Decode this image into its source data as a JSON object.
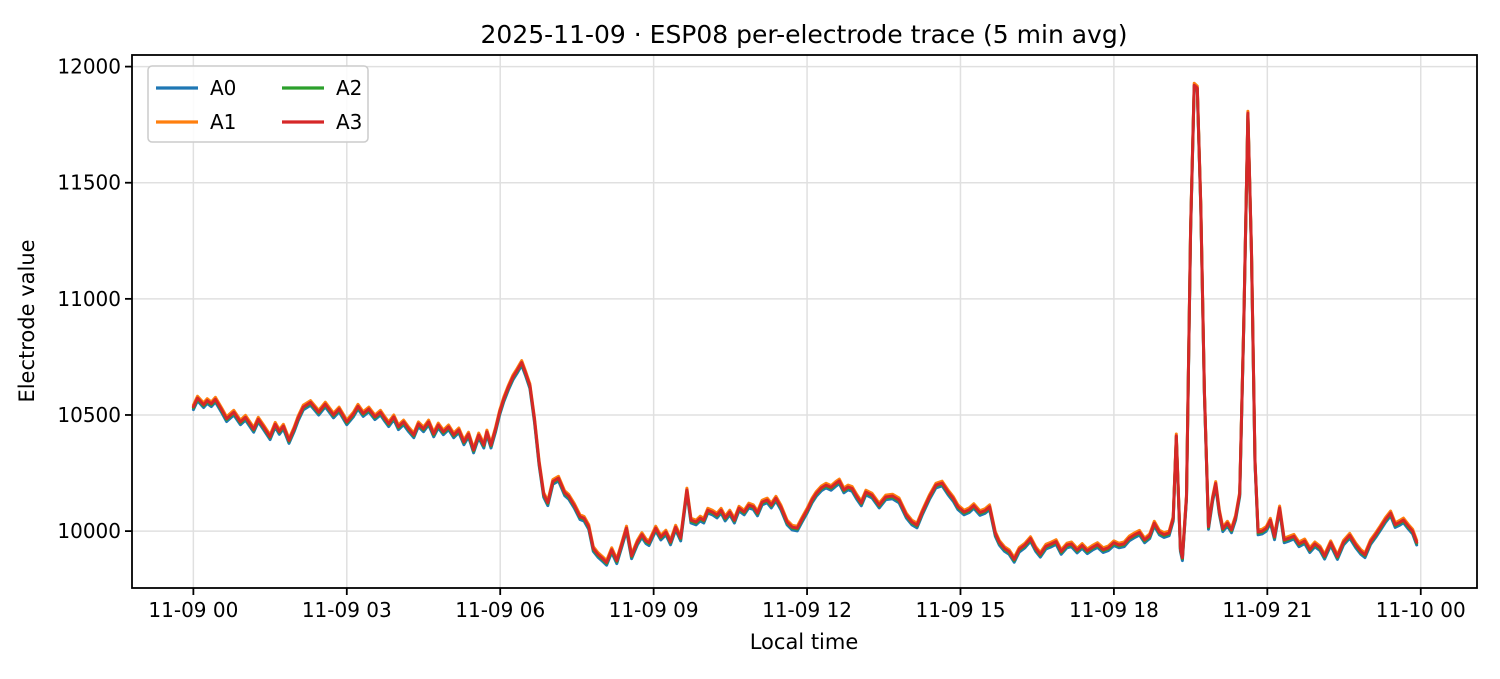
{
  "figure": {
    "title": "2025-11-09 · ESP08 per-electrode trace (5 min avg)",
    "xlabel": "Local time",
    "ylabel": "Electrode value"
  },
  "chart_data": {
    "type": "line",
    "title": "2025-11-09 · ESP08 per-electrode trace (5 min avg)",
    "xlabel": "Local time",
    "ylabel": "Electrode value",
    "x_unit": "hours since 2025-11-09 00:00 local",
    "sampling": "5 min avg",
    "grid": true,
    "legend_position": "upper left",
    "legend_columns": 2,
    "xlim": [
      -1.2,
      25.1
    ],
    "ylim": [
      9755,
      12050
    ],
    "x_ticks": {
      "hours": [
        0,
        3,
        6,
        9,
        12,
        15,
        18,
        21,
        24
      ],
      "labels": [
        "11-09 00",
        "11-09 03",
        "11-09 06",
        "11-09 09",
        "11-09 12",
        "11-09 15",
        "11-09 18",
        "11-09 21",
        "11-10 00"
      ]
    },
    "y_ticks": {
      "values": [
        10000,
        10500,
        11000,
        11500,
        12000
      ],
      "labels": [
        "10000",
        "10500",
        "11000",
        "11500",
        "12000"
      ]
    },
    "x_hours": [
      0.0,
      0.08,
      0.2,
      0.27,
      0.35,
      0.43,
      0.56,
      0.65,
      0.79,
      0.92,
      1.02,
      1.18,
      1.27,
      1.37,
      1.5,
      1.6,
      1.68,
      1.76,
      1.87,
      1.97,
      2.05,
      2.15,
      2.29,
      2.45,
      2.58,
      2.74,
      2.85,
      3.0,
      3.13,
      3.22,
      3.32,
      3.43,
      3.55,
      3.66,
      3.74,
      3.82,
      3.92,
      4.01,
      4.11,
      4.21,
      4.31,
      4.4,
      4.5,
      4.6,
      4.7,
      4.79,
      4.89,
      4.99,
      5.09,
      5.19,
      5.29,
      5.38,
      5.48,
      5.58,
      5.68,
      5.74,
      5.82,
      5.91,
      5.99,
      6.07,
      6.16,
      6.25,
      6.33,
      6.42,
      6.5,
      6.58,
      6.67,
      6.76,
      6.85,
      6.93,
      7.03,
      7.14,
      7.26,
      7.34,
      7.45,
      7.56,
      7.64,
      7.73,
      7.82,
      7.91,
      8.0,
      8.08,
      8.18,
      8.28,
      8.38,
      8.47,
      8.57,
      8.68,
      8.77,
      8.85,
      8.91,
      9.04,
      9.14,
      9.24,
      9.33,
      9.43,
      9.53,
      9.6,
      9.65,
      9.73,
      9.83,
      9.91,
      9.98,
      10.06,
      10.15,
      10.24,
      10.32,
      10.4,
      10.49,
      10.58,
      10.67,
      10.77,
      10.86,
      10.95,
      11.03,
      11.12,
      11.22,
      11.3,
      11.39,
      11.49,
      11.61,
      11.71,
      11.81,
      11.9,
      12.0,
      12.1,
      12.18,
      12.28,
      12.37,
      12.47,
      12.56,
      12.63,
      12.72,
      12.8,
      12.88,
      12.97,
      13.06,
      13.15,
      13.27,
      13.41,
      13.54,
      13.67,
      13.8,
      13.94,
      14.05,
      14.15,
      14.25,
      14.39,
      14.52,
      14.64,
      14.76,
      14.86,
      14.95,
      15.07,
      15.17,
      15.26,
      15.38,
      15.48,
      15.57,
      15.68,
      15.76,
      15.86,
      15.95,
      16.05,
      16.15,
      16.26,
      16.37,
      16.47,
      16.56,
      16.67,
      16.78,
      16.87,
      16.97,
      17.08,
      17.17,
      17.28,
      17.38,
      17.48,
      17.58,
      17.68,
      17.79,
      17.89,
      18.0,
      18.1,
      18.2,
      18.3,
      18.41,
      18.5,
      18.6,
      18.7,
      18.79,
      18.89,
      18.98,
      19.08,
      19.16,
      19.22,
      19.3,
      19.34,
      19.42,
      19.5,
      19.57,
      19.63,
      19.7,
      19.77,
      19.85,
      19.93,
      19.99,
      20.06,
      20.13,
      20.22,
      20.3,
      20.38,
      20.46,
      20.54,
      20.62,
      20.69,
      20.76,
      20.82,
      20.9,
      20.98,
      21.06,
      21.14,
      21.24,
      21.33,
      21.43,
      21.52,
      21.62,
      21.73,
      21.83,
      21.93,
      22.03,
      22.12,
      22.24,
      22.37,
      22.49,
      22.61,
      22.73,
      22.83,
      22.91,
      23.02,
      23.12,
      23.21,
      23.31,
      23.41,
      23.5,
      23.59,
      23.66,
      23.76,
      23.84,
      23.92
    ],
    "base_values": [
      10535,
      10573,
      10544,
      10562,
      10548,
      10568,
      10520,
      10484,
      10512,
      10470,
      10490,
      10438,
      10482,
      10450,
      10406,
      10460,
      10429,
      10452,
      10390,
      10440,
      10488,
      10534,
      10554,
      10512,
      10547,
      10500,
      10526,
      10470,
      10504,
      10538,
      10506,
      10526,
      10492,
      10512,
      10486,
      10462,
      10492,
      10449,
      10470,
      10440,
      10414,
      10462,
      10440,
      10470,
      10418,
      10457,
      10427,
      10449,
      10414,
      10436,
      10384,
      10418,
      10349,
      10414,
      10370,
      10427,
      10370,
      10440,
      10513,
      10569,
      10620,
      10664,
      10692,
      10726,
      10678,
      10626,
      10480,
      10295,
      10158,
      10122,
      10214,
      10228,
      10165,
      10150,
      10110,
      10062,
      10055,
      10020,
      9925,
      9900,
      9882,
      9865,
      9920,
      9872,
      9945,
      10013,
      9893,
      9952,
      9985,
      9958,
      9950,
      10013,
      9974,
      9996,
      9953,
      10017,
      9970,
      10090,
      10177,
      10047,
      10039,
      10056,
      10047,
      10090,
      10082,
      10069,
      10090,
      10056,
      10082,
      10047,
      10099,
      10082,
      10112,
      10105,
      10078,
      10125,
      10134,
      10112,
      10142,
      10103,
      10039,
      10017,
      10013,
      10050,
      10090,
      10135,
      10162,
      10186,
      10198,
      10188,
      10205,
      10216,
      10177,
      10190,
      10184,
      10150,
      10121,
      10168,
      10155,
      10112,
      10147,
      10151,
      10134,
      10069,
      10039,
      10026,
      10080,
      10147,
      10198,
      10207,
      10168,
      10140,
      10105,
      10082,
      10092,
      10110,
      10080,
      10088,
      10105,
      9990,
      9952,
      9925,
      9912,
      9878,
      9922,
      9940,
      9968,
      9925,
      9900,
      9935,
      9945,
      9955,
      9912,
      9940,
      9945,
      9918,
      9938,
      9915,
      9930,
      9942,
      9920,
      9928,
      9950,
      9940,
      9945,
      9970,
      9985,
      9995,
      9962,
      9980,
      10034,
      9996,
      9985,
      9992,
      10055,
      10410,
      9925,
      9885,
      10150,
      11300,
      11920,
      11908,
      11400,
      10600,
      10020,
      10140,
      10205,
      10085,
      10010,
      10034,
      10005,
      10060,
      10160,
      10900,
      11800,
      11200,
      10300,
      9996,
      10000,
      10012,
      10047,
      9975,
      10100,
      9962,
      9970,
      9978,
      9945,
      9958,
      9920,
      9945,
      9928,
      9892,
      9950,
      9890,
      9952,
      9982,
      9940,
      9912,
      9898,
      9955,
      9985,
      10015,
      10050,
      10078,
      10028,
      10038,
      10048,
      10020,
      10000,
      9952
    ],
    "series": [
      {
        "name": "A0",
        "color": "#1f77b4",
        "delta": -12
      },
      {
        "name": "A1",
        "color": "#ff7f0e",
        "delta": 8
      },
      {
        "name": "A2",
        "color": "#2ca02c",
        "delta": -4
      },
      {
        "name": "A3",
        "color": "#d62728",
        "delta": 0
      }
    ],
    "series_note": "values for each electrode = base_values + delta; A3 drawn on top"
  },
  "style": {
    "grid_color": "#e0e0e0",
    "spine_color": "#000000",
    "legend_border_color": "#cccccc",
    "background": "#ffffff"
  }
}
